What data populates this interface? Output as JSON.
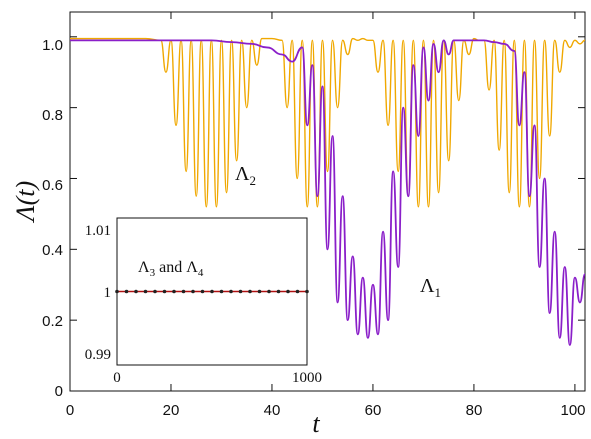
{
  "chart_data": [
    {
      "type": "line",
      "title": "",
      "xlabel": "t",
      "ylabel": "Λ(t)",
      "xlim": [
        0,
        102
      ],
      "ylim": [
        0,
        1.07
      ],
      "x_ticks": [
        "0",
        "20",
        "40",
        "60",
        "80",
        "100"
      ],
      "y_ticks": [
        "0",
        "0.2",
        "0.4",
        "0.6",
        "0.8",
        "1.0"
      ],
      "grid": false,
      "legend": "none",
      "annotations": [
        {
          "id": "lambda2",
          "text": "Λ",
          "sub": "2",
          "x": 31,
          "y": 0.63
        },
        {
          "id": "lambda1",
          "text": "Λ",
          "sub": "1",
          "x": 64.5,
          "y": 0.31
        }
      ],
      "series": [
        {
          "id": "lambda1",
          "color": "#8a1fc9",
          "x": [
            0,
            18,
            24,
            28,
            32,
            36,
            39,
            42,
            44,
            46,
            47,
            48,
            49,
            50,
            51,
            52,
            53,
            54,
            55,
            56,
            57,
            58,
            59,
            60,
            61,
            62,
            63,
            64,
            65,
            66,
            67,
            68,
            69,
            70,
            71,
            72,
            73,
            74,
            75,
            76,
            78,
            80,
            82,
            84,
            86,
            88,
            89,
            90,
            91,
            92,
            93,
            94,
            95,
            96,
            97,
            98,
            99,
            100,
            101,
            102
          ],
          "y": [
            0.99,
            0.99,
            0.99,
            0.99,
            0.985,
            0.98,
            0.97,
            0.95,
            0.93,
            0.97,
            0.75,
            0.92,
            0.55,
            0.86,
            0.4,
            0.72,
            0.25,
            0.55,
            0.2,
            0.38,
            0.16,
            0.32,
            0.15,
            0.3,
            0.16,
            0.45,
            0.2,
            0.62,
            0.35,
            0.8,
            0.55,
            0.92,
            0.72,
            0.97,
            0.82,
            0.98,
            0.9,
            0.99,
            0.95,
            0.99,
            0.99,
            0.99,
            0.99,
            0.985,
            0.98,
            0.96,
            0.75,
            0.9,
            0.55,
            0.75,
            0.35,
            0.6,
            0.22,
            0.45,
            0.15,
            0.35,
            0.13,
            0.32,
            0.25,
            0.33
          ],
          "max_points": 400
        },
        {
          "id": "lambda2",
          "color": "#f0a800",
          "x": [
            0,
            5,
            10,
            15,
            18,
            19,
            20,
            21,
            22,
            23,
            24,
            25,
            26,
            27,
            28,
            29,
            30,
            31,
            32,
            33,
            34,
            35,
            36,
            37,
            38,
            40,
            42,
            43,
            44,
            45,
            46,
            47,
            48,
            49,
            50,
            51,
            52,
            53,
            54,
            55,
            56,
            57,
            58,
            59,
            60,
            61,
            62,
            63,
            64,
            65,
            66,
            67,
            68,
            69,
            70,
            71,
            72,
            73,
            74,
            75,
            76,
            77,
            78,
            79,
            80,
            81,
            82,
            83,
            84,
            85,
            86,
            87,
            88,
            89,
            90,
            91,
            92,
            93,
            94,
            95,
            96,
            97,
            98,
            99,
            100,
            101,
            102
          ],
          "y": [
            0.995,
            0.995,
            0.995,
            0.995,
            0.99,
            0.9,
            0.99,
            0.75,
            0.99,
            0.62,
            0.99,
            0.55,
            0.99,
            0.52,
            0.99,
            0.52,
            0.99,
            0.56,
            0.99,
            0.65,
            0.99,
            0.8,
            0.99,
            0.92,
            0.995,
            0.995,
            0.99,
            0.8,
            0.99,
            0.6,
            0.99,
            0.52,
            0.99,
            0.52,
            0.99,
            0.62,
            0.99,
            0.8,
            0.99,
            0.95,
            0.995,
            0.99,
            0.995,
            0.99,
            0.99,
            0.9,
            0.99,
            0.75,
            0.99,
            0.62,
            0.99,
            0.55,
            0.99,
            0.52,
            0.99,
            0.52,
            0.99,
            0.56,
            0.99,
            0.65,
            0.99,
            0.82,
            0.99,
            0.95,
            0.995,
            0.99,
            0.99,
            0.85,
            0.99,
            0.68,
            0.99,
            0.56,
            0.99,
            0.52,
            0.99,
            0.52,
            0.99,
            0.6,
            0.99,
            0.72,
            0.99,
            0.9,
            0.99,
            0.97,
            0.99,
            0.98,
            0.99
          ],
          "max_points": 400
        }
      ]
    },
    {
      "type": "scatter",
      "title": "",
      "xlabel": "",
      "ylabel": "",
      "xlim": [
        0,
        1000
      ],
      "ylim": [
        0.99,
        1.01
      ],
      "x_ticks": [
        "0",
        "1000"
      ],
      "y_ticks": [
        "0.99",
        "1",
        "1.01"
      ],
      "grid": false,
      "legend": "none",
      "annotation": {
        "text_a": "Λ",
        "sub_a": "3",
        "mid": " and ",
        "text_b": "Λ",
        "sub_b": "4"
      },
      "series": [
        {
          "line_color": "#b01010",
          "marker_color": "#222222",
          "x": [
            0,
            50,
            100,
            150,
            200,
            250,
            300,
            350,
            400,
            450,
            500,
            550,
            600,
            650,
            700,
            750,
            800,
            850,
            900,
            950,
            1000
          ],
          "y": [
            1,
            1,
            1,
            1,
            1,
            1,
            1,
            1,
            1,
            1,
            1,
            1,
            1,
            1,
            1,
            1,
            1,
            1,
            1,
            1,
            1
          ]
        }
      ]
    }
  ]
}
